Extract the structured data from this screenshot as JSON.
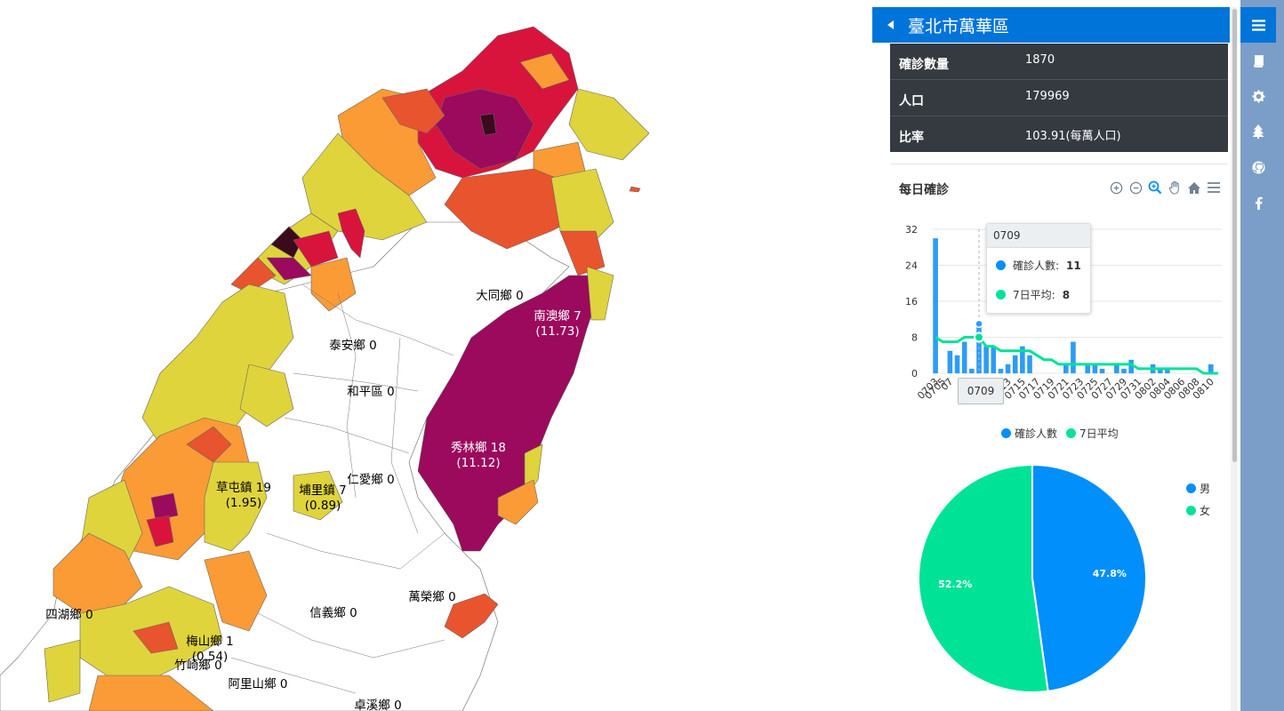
{
  "panel": {
    "title": "臺北市萬華區",
    "stats": [
      {
        "label": "確診數量",
        "value": "1870"
      },
      {
        "label": "人口",
        "value": "179969"
      },
      {
        "label": "比率",
        "value": "103.91(每萬人口)"
      }
    ]
  },
  "daily_chart_title": "每日確診",
  "map": {
    "labels": [
      {
        "text": "大同鄉 0"
      },
      {
        "text": "南澳鄉 7",
        "sub": "(11.73)"
      },
      {
        "text": "泰安鄉 0"
      },
      {
        "text": "和平區 0"
      },
      {
        "text": "秀林鄉 18",
        "sub": "(11.12)"
      },
      {
        "text": "仁愛鄉 0"
      },
      {
        "text": "草屯鎮 19",
        "sub": "(1.95)"
      },
      {
        "text": "埔里鎮 7",
        "sub": "(0.89)"
      },
      {
        "text": "萬榮鄉 0"
      },
      {
        "text": "信義鄉 0"
      },
      {
        "text": "四湖鄉 0"
      },
      {
        "text": "梅山鄉 1",
        "sub": "(0.54)"
      },
      {
        "text": "竹崎鄉 0"
      },
      {
        "text": "阿里山鄉 0"
      },
      {
        "text": "卓溪鄉 0"
      }
    ],
    "colors": {
      "darkest": "#3a0b1a",
      "purple": "#9b0a5c",
      "red": "#d8143c",
      "orange_red": "#e8542e",
      "orange": "#fb9b35",
      "yellow": "#dfd43c"
    }
  },
  "chart_data": [
    {
      "type": "bar",
      "title": "每日確診",
      "x": [
        "0703",
        "0704",
        "0705",
        "0706",
        "0707",
        "0708",
        "0709",
        "0710",
        "0711",
        "0712",
        "0713",
        "0714",
        "0715",
        "0716",
        "0717",
        "0718",
        "0719",
        "0720",
        "0721",
        "0722",
        "0723",
        "0724",
        "0725",
        "0726",
        "0727",
        "0728",
        "0729",
        "0730",
        "0731",
        "0801",
        "0802",
        "0803",
        "0804",
        "0805",
        "0806",
        "0807",
        "0808",
        "0809",
        "0810",
        "0811"
      ],
      "x_tick_labels": [
        "0703",
        "0705",
        "07",
        "",
        "",
        "",
        "",
        "",
        "",
        "",
        "13",
        "",
        "0715",
        "",
        "0717",
        "",
        "0719",
        "",
        "0721",
        "",
        "0723",
        "",
        "0725",
        "",
        "0727",
        "",
        "0729",
        "",
        "0731",
        "",
        "0802",
        "",
        "0804",
        "",
        "0806",
        "",
        "0808",
        "",
        "0810",
        ""
      ],
      "series": [
        {
          "name": "確診人數",
          "type": "bar",
          "color": "#2d9cf5",
          "values": [
            30,
            0,
            5,
            4,
            7,
            1,
            11,
            6,
            6,
            1,
            2,
            4,
            6,
            4,
            0,
            0,
            0,
            0,
            2,
            7,
            0,
            2,
            2,
            1,
            0,
            2,
            1,
            3,
            0,
            0,
            2,
            1,
            1,
            0,
            0,
            0,
            0,
            0,
            2,
            0
          ]
        },
        {
          "name": "7日平均",
          "type": "line",
          "color": "#00e396",
          "values": [
            8,
            7,
            7,
            7,
            8,
            8,
            8,
            6,
            6,
            5,
            5,
            5,
            5,
            5,
            4,
            3,
            3,
            2,
            2,
            2,
            2,
            2,
            2,
            2,
            2,
            2,
            2,
            2,
            1,
            1,
            1,
            1,
            1,
            1,
            1,
            1,
            1,
            0,
            0,
            0
          ]
        }
      ],
      "yticks": [
        0,
        8,
        16,
        24,
        32
      ],
      "ylim": [
        0,
        32
      ],
      "legend": "bottom-center",
      "tooltip": {
        "title": "0709",
        "rows": [
          {
            "label": "確診人數:",
            "value": "11"
          },
          {
            "label": "7日平均:",
            "value": "8"
          }
        ]
      },
      "x_crosshair_label": "0709"
    },
    {
      "type": "pie",
      "slices": [
        {
          "name": "男",
          "value": 47.8,
          "label": "47.8%",
          "color": "#008ffb"
        },
        {
          "name": "女",
          "value": 52.2,
          "label": "52.2%",
          "color": "#00e396"
        }
      ],
      "legend": "top-right"
    }
  ]
}
